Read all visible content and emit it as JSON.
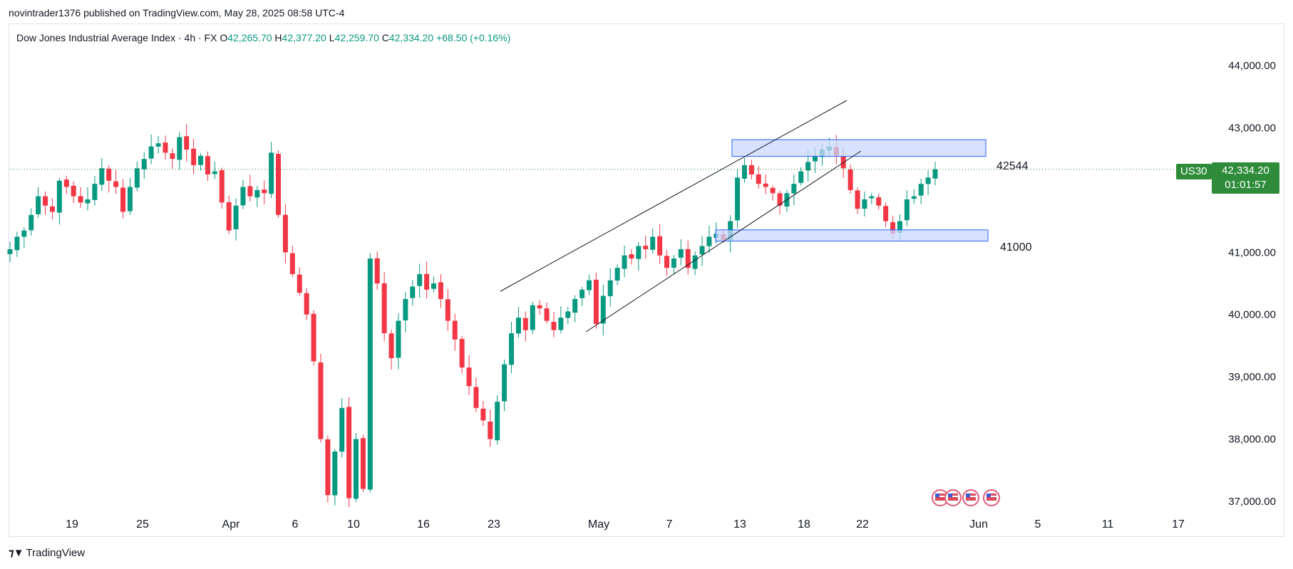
{
  "header": {
    "publisher": "novintrader1376 published on TradingView.com, May 28, 2025 08:58 UTC-4"
  },
  "legend": {
    "title": "Dow Jones Industrial Average Index · 4h · FX",
    "o_label": "O",
    "o_value": "42,265.70",
    "h_label": "H",
    "h_value": "42,377.20",
    "l_label": "L",
    "l_value": "42,259.70",
    "c_label": "C",
    "c_value": "42,334.20",
    "change": "+68.50 (+0.16%)"
  },
  "price_label": {
    "symbol": "US30",
    "price": "42,334.20",
    "countdown": "01:01:57"
  },
  "annotations": {
    "resistance_label": "42544",
    "support_label": "41000"
  },
  "footer": {
    "brand": "TradingView"
  },
  "colors": {
    "up": "#089981",
    "down": "#f23645",
    "zone_fill": "#c9d8ff",
    "zone_stroke": "#2962ff",
    "price_line": "#2e8b3a"
  },
  "chart_data": {
    "type": "candlestick",
    "symbol": "US30",
    "timeframe": "4h",
    "y_axis": {
      "ticks": [
        44000,
        43000,
        42000,
        41000,
        40000,
        39000,
        38000,
        37000
      ],
      "tick_labels": [
        "44,000.00",
        "43,000.00",
        "",
        "41,000.00",
        "40,000.00",
        "39,000.00",
        "38,000.00",
        "37,000.00"
      ],
      "range": [
        36900,
        44400
      ]
    },
    "x_axis": {
      "tick_labels": [
        "19",
        "25",
        "Apr",
        "6",
        "10",
        "16",
        "23",
        "May",
        "7",
        "13",
        "18",
        "22",
        "Jun",
        "5",
        "11",
        "17"
      ]
    },
    "last_price": 42334.2,
    "zones": [
      {
        "label": "42544",
        "from": 42540,
        "to": 42810
      },
      {
        "label": "41000",
        "from": 41180,
        "to": 41360
      }
    ],
    "closes": [
      41050,
      41250,
      41350,
      41600,
      41900,
      41750,
      41650,
      42150,
      42050,
      41900,
      41800,
      41850,
      42100,
      42350,
      42150,
      42050,
      41650,
      42050,
      42350,
      42500,
      42700,
      42750,
      42600,
      42500,
      42850,
      42650,
      42400,
      42550,
      42250,
      42300,
      41800,
      41350,
      41750,
      42050,
      41900,
      42000,
      41950,
      42600,
      41600,
      41000,
      40650,
      40350,
      40000,
      39250,
      38000,
      37100,
      37800,
      38500,
      37050,
      38000,
      37200,
      40900,
      40500,
      39700,
      39300,
      39900,
      40250,
      40450,
      40650,
      40400,
      40500,
      40250,
      39900,
      39600,
      39150,
      38850,
      38500,
      38300,
      38000,
      38600,
      39200,
      39700,
      39950,
      39750,
      40150,
      40100,
      39900,
      39750,
      39950,
      40050,
      40250,
      40400,
      40550,
      39850,
      40300,
      40550,
      40750,
      40950,
      40900,
      41100,
      41050,
      41250,
      40950,
      40750,
      40900,
      41050,
      40750,
      40950,
      41100,
      41250,
      41300,
      41200,
      41500,
      42200,
      42400,
      42250,
      42100,
      42050,
      41950,
      41750,
      41950,
      42100,
      42300,
      42450,
      42550,
      42650,
      42700,
      42550,
      42350,
      42000,
      41700,
      41850,
      41900,
      41750,
      41500,
      41300,
      41500,
      41850,
      41900,
      42100,
      42200,
      42334.2
    ]
  }
}
